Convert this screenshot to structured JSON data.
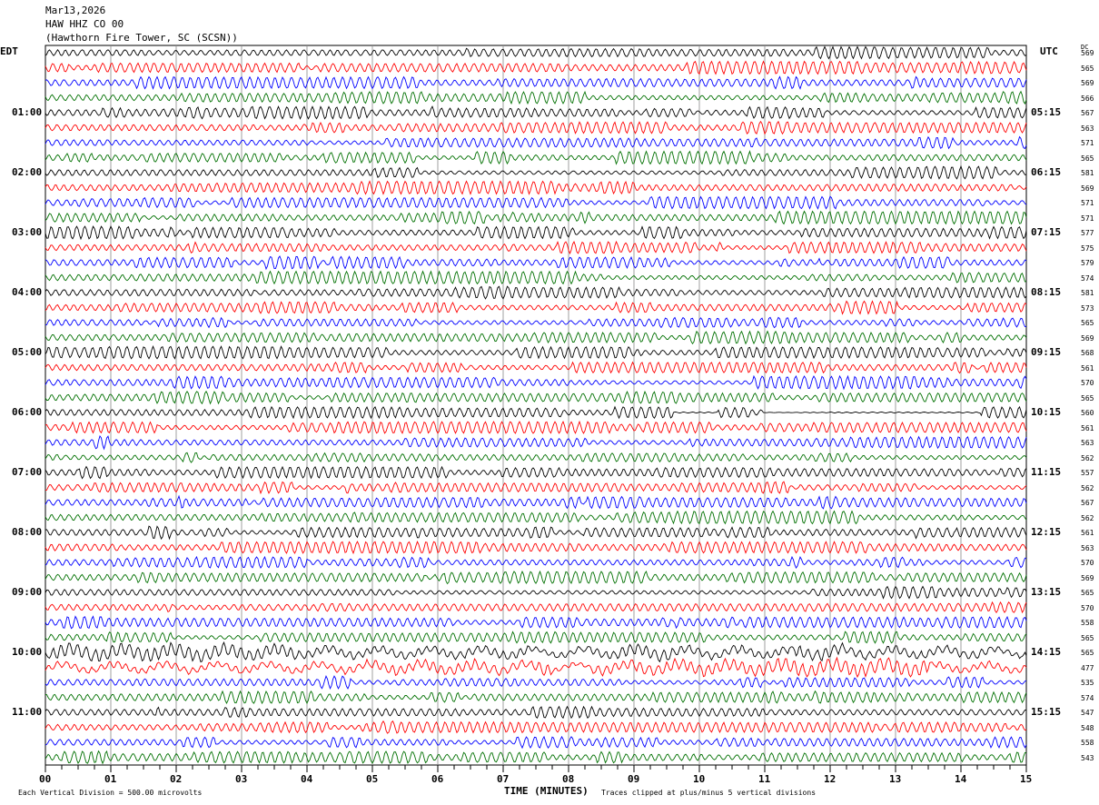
{
  "header": {
    "date": "Mar13,2026",
    "channel": "HAW HHZ CO 00",
    "station": "(Hawthorn Fire Tower, SC (SCSN))"
  },
  "chart_data": {
    "type": "line",
    "plot": "helicorder",
    "left_label": "EDT",
    "right_label": "UTC",
    "dc_header": "DC",
    "left_hour_labels": [
      "01:00",
      "02:00",
      "03:00",
      "04:00",
      "05:00",
      "06:00",
      "07:00",
      "08:00",
      "09:00",
      "10:00",
      "11:00"
    ],
    "right_hour_labels": [
      "05:15",
      "06:15",
      "07:15",
      "08:15",
      "09:15",
      "10:15",
      "11:15",
      "12:15",
      "13:15",
      "14:15",
      "15:15"
    ],
    "trace_colors": [
      "#000000",
      "#ff0000",
      "#0000ff",
      "#007000"
    ],
    "dc_offsets": [
      "569",
      "565",
      "569",
      "566",
      "567",
      "563",
      "571",
      "565",
      "581",
      "569",
      "571",
      "571",
      "577",
      "575",
      "579",
      "574",
      "581",
      "573",
      "565",
      "569",
      "568",
      "561",
      "570",
      "565",
      "560",
      "561",
      "563",
      "562",
      "557",
      "562",
      "567",
      "562",
      "561",
      "563",
      "570",
      "569",
      "565",
      "570",
      "558",
      "565",
      "565",
      "477",
      "535",
      "574",
      "547",
      "548",
      "558",
      "543"
    ],
    "xlabel": "TIME (MINUTES)",
    "x_ticks": [
      "00",
      "01",
      "02",
      "03",
      "04",
      "05",
      "06",
      "07",
      "08",
      "09",
      "10",
      "11",
      "12",
      "13",
      "14",
      "15"
    ],
    "xlim": [
      0,
      15
    ],
    "grid": true,
    "scale_note": "Each Vertical Division =  500.00 microvolts",
    "clip_note": "Traces clipped at plus/minus 5 vertical divisions"
  }
}
